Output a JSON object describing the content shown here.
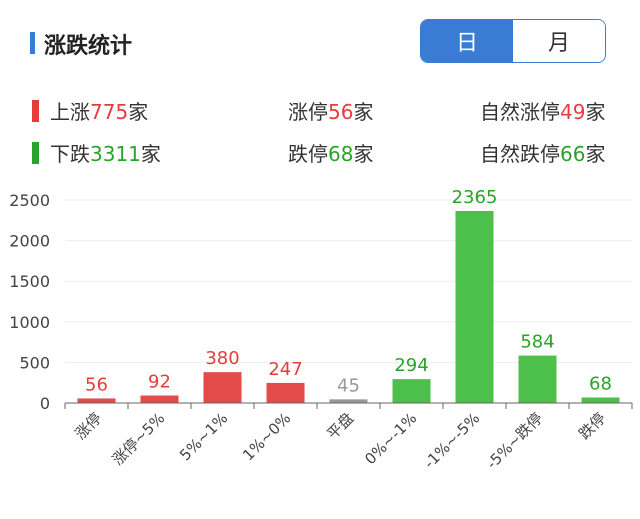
{
  "header": {
    "title": "涨跌统计",
    "toggle": {
      "day_label": "日",
      "month_label": "月",
      "selected": "日"
    }
  },
  "summary": {
    "rise": {
      "label": "上涨",
      "value": "775",
      "unit": "家"
    },
    "fall": {
      "label": "下跌",
      "value": "3311",
      "unit": "家"
    },
    "limit_up": {
      "label": "涨停",
      "value": "56",
      "unit": "家"
    },
    "limit_down": {
      "label": "跌停",
      "value": "68",
      "unit": "家"
    },
    "natural_limit_up": {
      "label": "自然涨停",
      "value": "49",
      "unit": "家"
    },
    "natural_limit_down": {
      "label": "自然跌停",
      "value": "66",
      "unit": "家"
    }
  },
  "colors": {
    "accent": "#3a7bd5",
    "rise": "#e63c3c",
    "fall": "#28a428",
    "flat": "#999999",
    "bar_green": "#4cc04a",
    "grid": "#eeeeee",
    "axis": "#666666"
  },
  "chart_data": {
    "type": "bar",
    "categories": [
      "涨停",
      "涨停~5%",
      "5%~1%",
      "1%~0%",
      "平盘",
      "0%~-1%",
      "-1%~-5%",
      "-5%~跌停",
      "跌停"
    ],
    "values": [
      56,
      92,
      380,
      247,
      45,
      294,
      2365,
      584,
      68
    ],
    "bar_colors": [
      "#e34a4a",
      "#e34a4a",
      "#e34a4a",
      "#e34a4a",
      "#999999",
      "#4cc04a",
      "#4cc04a",
      "#4cc04a",
      "#4cc04a"
    ],
    "label_colors": [
      "#e63c3c",
      "#e63c3c",
      "#e63c3c",
      "#e63c3c",
      "#999999",
      "#28a428",
      "#28a428",
      "#28a428",
      "#28a428"
    ],
    "ylim": [
      0,
      2500
    ],
    "yticks": [
      0,
      500,
      1000,
      1500,
      2000,
      2500
    ],
    "grid": true,
    "xlabel": "",
    "ylabel": ""
  }
}
